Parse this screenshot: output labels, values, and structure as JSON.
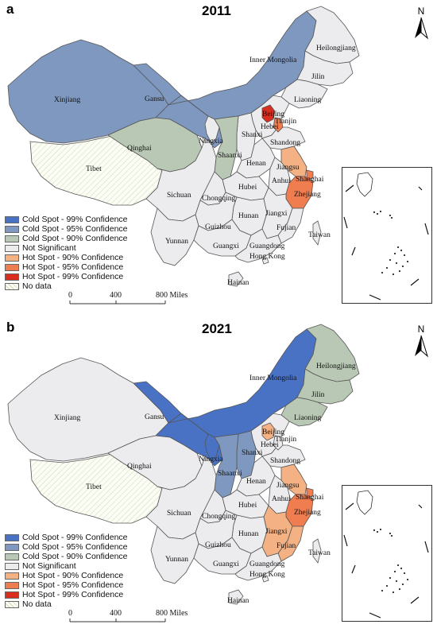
{
  "colors": {
    "cold99": "#4a72c4",
    "cold95": "#7e98bf",
    "cold90": "#b9c8b4",
    "notsig": "#ececee",
    "hot90": "#f4b183",
    "hot95": "#ef7d4f",
    "hot99": "#d92d1f",
    "nodata": "#ffffff",
    "outline": "#555555"
  },
  "legend": [
    {
      "key": "cold99",
      "label": "Cold Spot - 99% Confidence"
    },
    {
      "key": "cold95",
      "label": "Cold Spot - 95% Confidence"
    },
    {
      "key": "cold90",
      "label": "Cold Spot - 90% Confidence"
    },
    {
      "key": "notsig",
      "label": "Not Significant"
    },
    {
      "key": "hot90",
      "label": "Hot Spot - 90% Confidence"
    },
    {
      "key": "hot95",
      "label": "Hot Spot - 95% Confidence"
    },
    {
      "key": "hot99",
      "label": "Hot Spot - 99% Confidence"
    },
    {
      "key": "nodata",
      "label": "No data"
    }
  ],
  "scale": {
    "labels": [
      "0",
      "400",
      "800 Miles"
    ]
  },
  "north_label": "N",
  "province_names": {
    "xinjiang": "Xinjiang",
    "tibet": "Tibet",
    "qinghai": "Qinghai",
    "gansu": "Gansu",
    "innermongolia": "Inner Mongolia",
    "heilongjiang": "Heilongjiang",
    "jilin": "Jilin",
    "liaoning": "Liaoning",
    "beijing": "Beijing",
    "tianjin": "Tianjin",
    "hebei": "Hebei",
    "shanxi": "Shanxi",
    "ningxia": "Ningxia",
    "shaanxi": "Shaanxi",
    "shandong": "Shandong",
    "henan": "Henan",
    "jiangsu": "Jiangsu",
    "shanghai": "Shanghai",
    "anhui": "Anhui",
    "hubei": "Hubei",
    "sichuan": "Sichuan",
    "chongqing": "Chongqing",
    "zhejiang": "Zhejiang",
    "jiangxi": "Jiangxi",
    "hunan": "Hunan",
    "guizhou": "Guizhou",
    "yunnan": "Yunnan",
    "fujian": "Fujian",
    "taiwan": "Taiwan",
    "guangxi": "Guangxi",
    "guangdong": "Guangdong",
    "hongkong": "Hong Kong",
    "hainan": "Hainan"
  },
  "maps": [
    {
      "letter": "a",
      "year": "2011",
      "classes": {
        "xinjiang": "cold95",
        "tibet": "nodata",
        "qinghai": "cold90",
        "gansu": "cold95",
        "innermongolia": "cold95",
        "heilongjiang": "notsig",
        "jilin": "notsig",
        "liaoning": "notsig",
        "beijing": "hot99",
        "tianjin": "hot95",
        "hebei": "notsig",
        "shanxi": "notsig",
        "ningxia": "notsig",
        "shaanxi": "cold90",
        "shandong": "notsig",
        "henan": "notsig",
        "jiangsu": "hot90",
        "shanghai": "hot95",
        "anhui": "notsig",
        "hubei": "notsig",
        "sichuan": "notsig",
        "chongqing": "notsig",
        "zhejiang": "hot95",
        "jiangxi": "notsig",
        "hunan": "notsig",
        "guizhou": "notsig",
        "yunnan": "notsig",
        "fujian": "notsig",
        "taiwan": "notsig",
        "guangxi": "notsig",
        "guangdong": "notsig",
        "hongkong": "notsig",
        "hainan": "notsig"
      }
    },
    {
      "letter": "b",
      "year": "2021",
      "classes": {
        "xinjiang": "notsig",
        "tibet": "nodata",
        "qinghai": "notsig",
        "gansu": "cold99",
        "innermongolia": "cold99",
        "heilongjiang": "cold90",
        "jilin": "cold90",
        "liaoning": "cold90",
        "beijing": "hot90",
        "tianjin": "notsig",
        "hebei": "notsig",
        "shanxi": "cold95",
        "ningxia": "cold99",
        "shaanxi": "cold95",
        "shandong": "notsig",
        "henan": "notsig",
        "jiangsu": "hot90",
        "shanghai": "hot95",
        "anhui": "notsig",
        "hubei": "notsig",
        "sichuan": "notsig",
        "chongqing": "notsig",
        "zhejiang": "hot95",
        "jiangxi": "hot90",
        "hunan": "notsig",
        "guizhou": "notsig",
        "yunnan": "notsig",
        "fujian": "hot90",
        "taiwan": "notsig",
        "guangxi": "notsig",
        "guangdong": "notsig",
        "hongkong": "notsig",
        "hainan": "notsig"
      }
    }
  ]
}
